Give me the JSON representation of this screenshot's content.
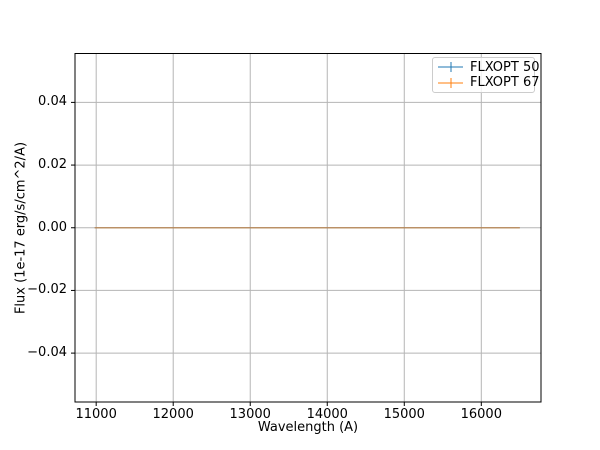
{
  "figure": {
    "background": "#ffffff"
  },
  "chart_data": {
    "type": "line",
    "title": "",
    "xlabel": "Wavelength (A)",
    "ylabel": "Flux (1e-17 erg/s/cm^2/A)",
    "xlim": [
      10725,
      16775
    ],
    "ylim": [
      -0.0556,
      0.0556
    ],
    "xticks": {
      "values": [
        11000,
        12000,
        13000,
        14000,
        15000,
        16000
      ],
      "labels": [
        "11000",
        "12000",
        "13000",
        "14000",
        "15000",
        "16000"
      ]
    },
    "yticks": {
      "values": [
        0.04,
        0.02,
        0.0,
        -0.02,
        -0.04
      ],
      "labels": [
        "0.04",
        "0.02",
        "0.00",
        "−0.02",
        "−0.04"
      ]
    },
    "grid": true,
    "grid_color": "#b5b5b5",
    "spine_color": "#000000",
    "legend": {
      "position": "upper right",
      "edge_color": "#cccccc"
    },
    "series": [
      {
        "name": "FLXOPT 50",
        "color": "#1f77b4",
        "alpha": 0.5,
        "style": "errorbar",
        "x": [
          10980,
          16500
        ],
        "y": [
          0.0,
          0.0
        ]
      },
      {
        "name": "FLXOPT 67",
        "color": "#ff7f0e",
        "alpha": 0.5,
        "style": "errorbar",
        "x": [
          10980,
          16500
        ],
        "y": [
          0.0,
          0.0
        ]
      }
    ]
  }
}
